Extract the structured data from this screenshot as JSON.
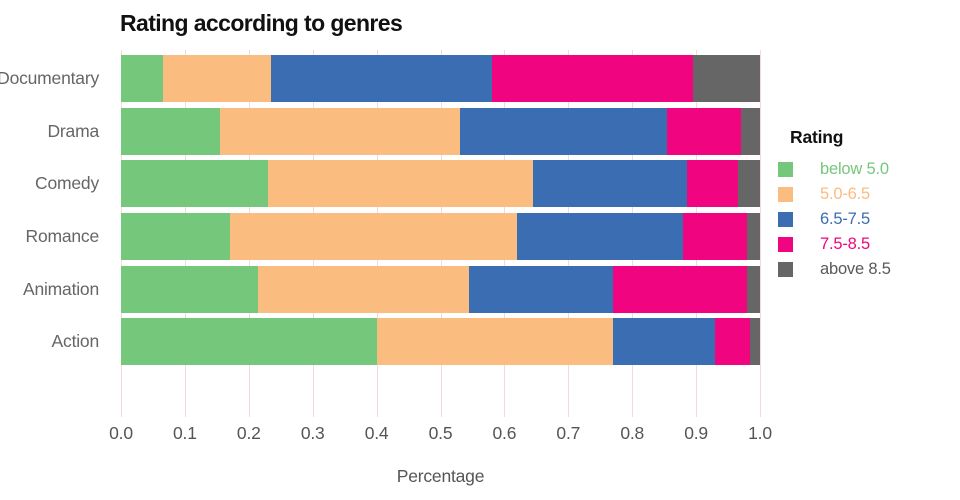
{
  "title": "Rating according to genres",
  "legend": {
    "title": "Rating",
    "items": [
      {
        "label": "below 5.0",
        "color": "#74C77B",
        "text_color": "#74C77B"
      },
      {
        "label": "5.0-6.5",
        "color": "#FBBC80",
        "text_color": "#FBBC80"
      },
      {
        "label": "6.5-7.5",
        "color": "#3B6DB3",
        "text_color": "#3B6DB3"
      },
      {
        "label": "7.5-8.5",
        "color": "#F0047F",
        "text_color": "#F0047F"
      },
      {
        "label": "above 8.5",
        "color": "#666666",
        "text_color": "#595959"
      }
    ]
  },
  "chart_data": {
    "type": "bar",
    "orientation": "horizontal",
    "stacked": true,
    "title": "Rating according to genres",
    "categories": [
      "Documentary",
      "Drama",
      "Comedy",
      "Romance",
      "Animation",
      "Action"
    ],
    "series": [
      {
        "name": "below 5.0",
        "color": "#74C77B",
        "values": [
          0.065,
          0.155,
          0.23,
          0.17,
          0.215,
          0.4
        ]
      },
      {
        "name": "5.0-6.5",
        "color": "#FBBC80",
        "values": [
          0.17,
          0.375,
          0.415,
          0.45,
          0.33,
          0.37
        ]
      },
      {
        "name": "6.5-7.5",
        "color": "#3B6DB3",
        "values": [
          0.345,
          0.325,
          0.24,
          0.26,
          0.225,
          0.16
        ]
      },
      {
        "name": "7.5-8.5",
        "color": "#F0047F",
        "values": [
          0.315,
          0.115,
          0.08,
          0.1,
          0.21,
          0.055
        ]
      },
      {
        "name": "above 8.5",
        "color": "#666666",
        "values": [
          0.105,
          0.03,
          0.035,
          0.02,
          0.02,
          0.015
        ]
      }
    ],
    "xlabel": "Percentage",
    "x_ticks": [
      "0.0",
      "0.1",
      "0.2",
      "0.3",
      "0.4",
      "0.5",
      "0.6",
      "0.7",
      "0.8",
      "0.9",
      "1.0"
    ],
    "xlim": [
      0,
      1
    ],
    "grid": true,
    "legend_position": "right",
    "legend_title": "Rating"
  },
  "colors": {
    "grid": "#F8D7D7",
    "axis_text": "#555555",
    "category_text": "#666666",
    "title_text": "#111111",
    "background": "#FFFFFF"
  }
}
